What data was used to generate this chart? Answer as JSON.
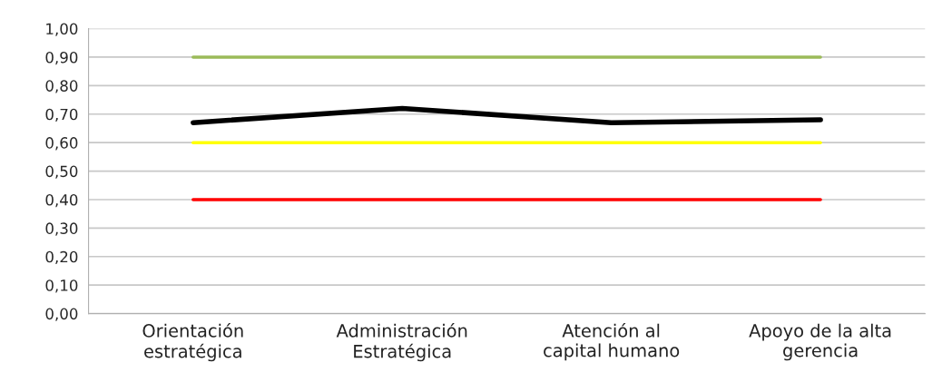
{
  "chart_data": {
    "type": "line",
    "categories": [
      "Orientación\nestratégica",
      "Administración\nEstratégica",
      "Atención al\ncapital humano",
      "Apoyo de la alta\ngerencia"
    ],
    "series": [
      {
        "color": "#9bbb59",
        "values": [
          0.9,
          0.9,
          0.9,
          0.9
        ]
      },
      {
        "color": "#ffff00",
        "values": [
          0.6,
          0.6,
          0.6,
          0.6
        ]
      },
      {
        "color": "#ff0000",
        "values": [
          0.4,
          0.4,
          0.4,
          0.4
        ]
      },
      {
        "color": "#000000",
        "values": [
          0.67,
          0.72,
          0.67,
          0.68
        ]
      }
    ],
    "ylim": [
      0,
      1
    ],
    "yticks": [
      {
        "value": 0,
        "label": "0,00"
      },
      {
        "value": 0.1,
        "label": "0,10"
      },
      {
        "value": 0.2,
        "label": "0,20"
      },
      {
        "value": 0.3,
        "label": "0,30"
      },
      {
        "value": 0.4,
        "label": "0,40"
      },
      {
        "value": 0.5,
        "label": "0,50"
      },
      {
        "value": 0.6,
        "label": "0,60"
      },
      {
        "value": 0.7,
        "label": "0,70"
      },
      {
        "value": 0.8,
        "label": "0,80"
      },
      {
        "value": 0.9,
        "label": "0,90"
      },
      {
        "value": 1,
        "label": "1,00"
      }
    ],
    "grid": "y",
    "legend": false,
    "marker": "none",
    "line_style": "solid"
  }
}
